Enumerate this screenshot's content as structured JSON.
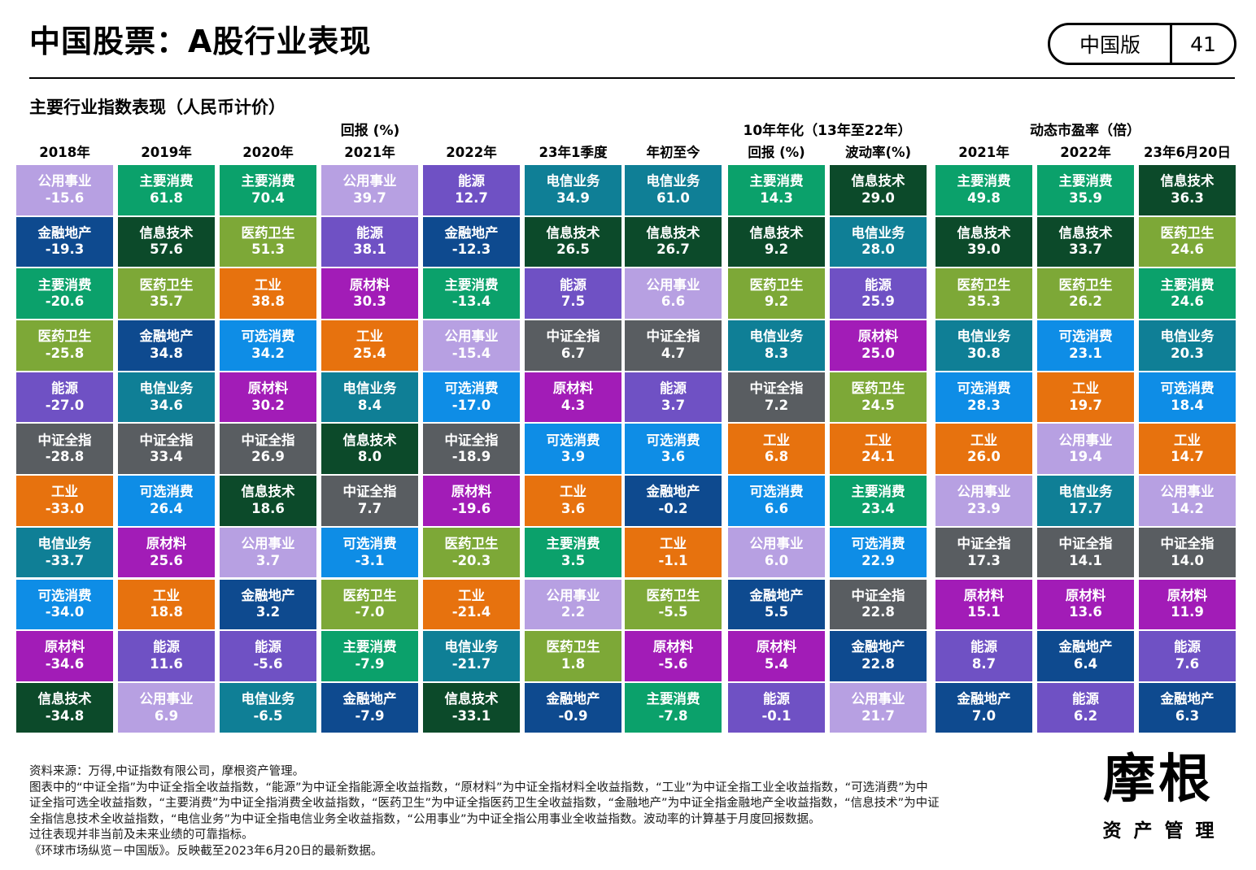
{
  "page": {
    "title": "中国股票：A股行业表现",
    "badge": {
      "region": "中国版",
      "page_number": "41"
    },
    "subtitle": "主要行业指数表现（人民币计价）"
  },
  "group_headers": {
    "returns": "回报 (%)",
    "ten_year": "10年年化（13年至22年）",
    "pe": "动态市盈率（倍）"
  },
  "colors": {
    "公用事业": "#b7a0e2",
    "金融地产": "#0e4a8f",
    "主要消费": "#0ba16b",
    "医药卫生": "#7da837",
    "能源": "#6f51c4",
    "中证全指": "#595d61",
    "工业": "#e7720e",
    "电信业务": "#0f7f96",
    "可选消费": "#0e8de6",
    "原材料": "#a21cb7",
    "信息技术": "#0c4a2a"
  },
  "chart_data": {
    "type": "table",
    "title": "主要行业指数表现（人民币计价）",
    "columns": [
      {
        "header": "2018年",
        "group": "回报 (%)",
        "cells": [
          {
            "sector": "公用事业",
            "value": "-15.6"
          },
          {
            "sector": "金融地产",
            "value": "-19.3"
          },
          {
            "sector": "主要消费",
            "value": "-20.6"
          },
          {
            "sector": "医药卫生",
            "value": "-25.8"
          },
          {
            "sector": "能源",
            "value": "-27.0"
          },
          {
            "sector": "中证全指",
            "value": "-28.8"
          },
          {
            "sector": "工业",
            "value": "-33.0"
          },
          {
            "sector": "电信业务",
            "value": "-33.7"
          },
          {
            "sector": "可选消费",
            "value": "-34.0"
          },
          {
            "sector": "原材料",
            "value": "-34.6"
          },
          {
            "sector": "信息技术",
            "value": "-34.8"
          }
        ]
      },
      {
        "header": "2019年",
        "group": "回报 (%)",
        "cells": [
          {
            "sector": "主要消费",
            "value": "61.8"
          },
          {
            "sector": "信息技术",
            "value": "57.6"
          },
          {
            "sector": "医药卫生",
            "value": "35.7"
          },
          {
            "sector": "金融地产",
            "value": "34.8"
          },
          {
            "sector": "电信业务",
            "value": "34.6"
          },
          {
            "sector": "中证全指",
            "value": "33.4"
          },
          {
            "sector": "可选消费",
            "value": "26.4"
          },
          {
            "sector": "原材料",
            "value": "25.6"
          },
          {
            "sector": "工业",
            "value": "18.8"
          },
          {
            "sector": "能源",
            "value": "11.6"
          },
          {
            "sector": "公用事业",
            "value": "6.9"
          }
        ]
      },
      {
        "header": "2020年",
        "group": "回报 (%)",
        "cells": [
          {
            "sector": "主要消费",
            "value": "70.4"
          },
          {
            "sector": "医药卫生",
            "value": "51.3"
          },
          {
            "sector": "工业",
            "value": "38.8"
          },
          {
            "sector": "可选消费",
            "value": "34.2"
          },
          {
            "sector": "原材料",
            "value": "30.2"
          },
          {
            "sector": "中证全指",
            "value": "26.9"
          },
          {
            "sector": "信息技术",
            "value": "18.6"
          },
          {
            "sector": "公用事业",
            "value": "3.7"
          },
          {
            "sector": "金融地产",
            "value": "3.2"
          },
          {
            "sector": "能源",
            "value": "-5.6"
          },
          {
            "sector": "电信业务",
            "value": "-6.5"
          }
        ]
      },
      {
        "header": "2021年",
        "group": "回报 (%)",
        "cells": [
          {
            "sector": "公用事业",
            "value": "39.7"
          },
          {
            "sector": "能源",
            "value": "38.1"
          },
          {
            "sector": "原材料",
            "value": "30.3"
          },
          {
            "sector": "工业",
            "value": "25.4"
          },
          {
            "sector": "电信业务",
            "value": "8.4"
          },
          {
            "sector": "信息技术",
            "value": "8.0"
          },
          {
            "sector": "中证全指",
            "value": "7.7"
          },
          {
            "sector": "可选消费",
            "value": "-3.1"
          },
          {
            "sector": "医药卫生",
            "value": "-7.0"
          },
          {
            "sector": "主要消费",
            "value": "-7.9"
          },
          {
            "sector": "金融地产",
            "value": "-7.9"
          }
        ]
      },
      {
        "header": "2022年",
        "group": "回报 (%)",
        "cells": [
          {
            "sector": "能源",
            "value": "12.7"
          },
          {
            "sector": "金融地产",
            "value": "-12.3"
          },
          {
            "sector": "主要消费",
            "value": "-13.4"
          },
          {
            "sector": "公用事业",
            "value": "-15.4"
          },
          {
            "sector": "可选消费",
            "value": "-17.0"
          },
          {
            "sector": "中证全指",
            "value": "-18.9"
          },
          {
            "sector": "原材料",
            "value": "-19.6"
          },
          {
            "sector": "医药卫生",
            "value": "-20.3"
          },
          {
            "sector": "工业",
            "value": "-21.4"
          },
          {
            "sector": "电信业务",
            "value": "-21.7"
          },
          {
            "sector": "信息技术",
            "value": "-33.1"
          }
        ]
      },
      {
        "header": "23年1季度",
        "group": "回报 (%)",
        "cells": [
          {
            "sector": "电信业务",
            "value": "34.9"
          },
          {
            "sector": "信息技术",
            "value": "26.5"
          },
          {
            "sector": "能源",
            "value": "7.5"
          },
          {
            "sector": "中证全指",
            "value": "6.7"
          },
          {
            "sector": "原材料",
            "value": "4.3"
          },
          {
            "sector": "可选消费",
            "value": "3.9"
          },
          {
            "sector": "工业",
            "value": "3.6"
          },
          {
            "sector": "主要消费",
            "value": "3.5"
          },
          {
            "sector": "公用事业",
            "value": "2.2"
          },
          {
            "sector": "医药卫生",
            "value": "1.8"
          },
          {
            "sector": "金融地产",
            "value": "-0.9"
          }
        ]
      },
      {
        "header": "年初至今",
        "group": "回报 (%)",
        "cells": [
          {
            "sector": "电信业务",
            "value": "61.0"
          },
          {
            "sector": "信息技术",
            "value": "26.7"
          },
          {
            "sector": "公用事业",
            "value": "6.6"
          },
          {
            "sector": "中证全指",
            "value": "4.7"
          },
          {
            "sector": "能源",
            "value": "3.7"
          },
          {
            "sector": "可选消费",
            "value": "3.6"
          },
          {
            "sector": "金融地产",
            "value": "-0.2"
          },
          {
            "sector": "工业",
            "value": "-1.1"
          },
          {
            "sector": "医药卫生",
            "value": "-5.5"
          },
          {
            "sector": "原材料",
            "value": "-5.6"
          },
          {
            "sector": "主要消费",
            "value": "-7.8"
          }
        ]
      },
      {
        "header": "回报 (%)",
        "group": "10年年化（13年至22年）",
        "cells": [
          {
            "sector": "主要消费",
            "value": "14.3"
          },
          {
            "sector": "信息技术",
            "value": "9.2"
          },
          {
            "sector": "医药卫生",
            "value": "9.2"
          },
          {
            "sector": "电信业务",
            "value": "8.3"
          },
          {
            "sector": "中证全指",
            "value": "7.2"
          },
          {
            "sector": "工业",
            "value": "6.8"
          },
          {
            "sector": "可选消费",
            "value": "6.6"
          },
          {
            "sector": "公用事业",
            "value": "6.0"
          },
          {
            "sector": "金融地产",
            "value": "5.5"
          },
          {
            "sector": "原材料",
            "value": "5.4"
          },
          {
            "sector": "能源",
            "value": "-0.1"
          }
        ]
      },
      {
        "header": "波动率(%)",
        "group": "10年年化（13年至22年）",
        "cells": [
          {
            "sector": "信息技术",
            "value": "29.0"
          },
          {
            "sector": "电信业务",
            "value": "28.0"
          },
          {
            "sector": "能源",
            "value": "25.9"
          },
          {
            "sector": "原材料",
            "value": "25.0"
          },
          {
            "sector": "医药卫生",
            "value": "24.5"
          },
          {
            "sector": "工业",
            "value": "24.1"
          },
          {
            "sector": "主要消费",
            "value": "23.4"
          },
          {
            "sector": "可选消费",
            "value": "22.9"
          },
          {
            "sector": "中证全指",
            "value": "22.8"
          },
          {
            "sector": "金融地产",
            "value": "22.8"
          },
          {
            "sector": "公用事业",
            "value": "21.7"
          }
        ]
      },
      {
        "header": "2021年",
        "group": "动态市盈率（倍）",
        "cells": [
          {
            "sector": "主要消费",
            "value": "49.8"
          },
          {
            "sector": "信息技术",
            "value": "39.0"
          },
          {
            "sector": "医药卫生",
            "value": "35.3"
          },
          {
            "sector": "电信业务",
            "value": "30.8"
          },
          {
            "sector": "可选消费",
            "value": "28.3"
          },
          {
            "sector": "工业",
            "value": "26.0"
          },
          {
            "sector": "公用事业",
            "value": "23.9"
          },
          {
            "sector": "中证全指",
            "value": "17.3"
          },
          {
            "sector": "原材料",
            "value": "15.1"
          },
          {
            "sector": "能源",
            "value": "8.7"
          },
          {
            "sector": "金融地产",
            "value": "7.0"
          }
        ]
      },
      {
        "header": "2022年",
        "group": "动态市盈率（倍）",
        "cells": [
          {
            "sector": "主要消费",
            "value": "35.9"
          },
          {
            "sector": "信息技术",
            "value": "33.7"
          },
          {
            "sector": "医药卫生",
            "value": "26.2"
          },
          {
            "sector": "可选消费",
            "value": "23.1"
          },
          {
            "sector": "工业",
            "value": "19.7"
          },
          {
            "sector": "公用事业",
            "value": "19.4"
          },
          {
            "sector": "电信业务",
            "value": "17.7"
          },
          {
            "sector": "中证全指",
            "value": "14.1"
          },
          {
            "sector": "原材料",
            "value": "13.6"
          },
          {
            "sector": "金融地产",
            "value": "6.4"
          },
          {
            "sector": "能源",
            "value": "6.2"
          }
        ]
      },
      {
        "header": "23年6月20日",
        "group": "动态市盈率（倍）",
        "cells": [
          {
            "sector": "信息技术",
            "value": "36.3"
          },
          {
            "sector": "医药卫生",
            "value": "24.6"
          },
          {
            "sector": "主要消费",
            "value": "24.6"
          },
          {
            "sector": "电信业务",
            "value": "20.3"
          },
          {
            "sector": "可选消费",
            "value": "18.4"
          },
          {
            "sector": "工业",
            "value": "14.7"
          },
          {
            "sector": "公用事业",
            "value": "14.2"
          },
          {
            "sector": "中证全指",
            "value": "14.0"
          },
          {
            "sector": "原材料",
            "value": "11.9"
          },
          {
            "sector": "能源",
            "value": "7.6"
          },
          {
            "sector": "金融地产",
            "value": "6.3"
          }
        ]
      }
    ]
  },
  "footer": {
    "lines": [
      "资料来源：万得,中证指数有限公司，摩根资产管理。",
      "图表中的“中证全指”为中证全指全收益指数，“能源”为中证全指能源全收益指数，“原材料”为中证全指材料全收益指数，“工业”为中证全指工业全收益指数，“可选消费”为中",
      "证全指可选全收益指数，“主要消费”为中证全指消费全收益指数，“医药卫生”为中证全指医药卫生全收益指数，“金融地产”为中证全指金融地产全收益指数，“信息技术”为中证",
      "全指信息技术全收益指数，“电信业务”为中证全指电信业务全收益指数，“公用事业”为中证全指公用事业全收益指数。波动率的计算基于月度回报数据。",
      "过往表现并非当前及未来业绩的可靠指标。",
      "《环球市场纵览－中国版》。反映截至2023年6月20日的最新数据。"
    ]
  },
  "logo": {
    "main": "摩根",
    "sub": "资产管理"
  }
}
